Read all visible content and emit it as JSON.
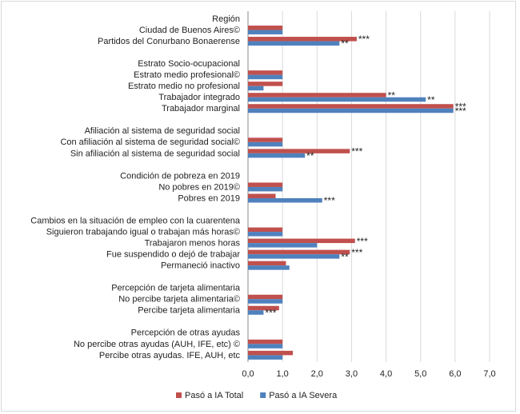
{
  "chart_data": {
    "type": "hbar",
    "categories": [
      "Región",
      "Ciudad de Buenos Aires©",
      "Partidos del Conurbano Bonaerense",
      null,
      "Estrato Socio-ocupacional",
      "Estrato medio profesional©",
      "Estrato medio no profesional",
      "Trabajador integrado",
      "Trabajador marginal",
      null,
      "Afiliación al sistema de seguridad social",
      "Con afiliación al sistema de seguridad social©",
      "Sin afiliación al sistema de seguridad social",
      null,
      "Condición de pobreza en 2019",
      "No pobres en 2019©",
      "Pobres en 2019",
      null,
      "Cambios en la situación de empleo con la cuarentena",
      "Siguieron trabajando igual o trabajan más horas©",
      "Trabajaron menos horas",
      "Fue suspendido o dejó de trabajar",
      "Permaneció inactivo",
      null,
      "Percepción de tarjeta alimentaria",
      "No percibe tarjeta alimentaria©",
      "Percibe tarjeta alimentaria",
      null,
      "Percepción de otras ayudas",
      "No percibe otras ayudas (AUH, IFE, etc) ©",
      "Percibe otras ayudas. IFE, AUH, etc"
    ],
    "series": [
      {
        "name": "Pasó a IA Total",
        "color": "#c0504d",
        "values": [
          null,
          1.0,
          3.15,
          null,
          null,
          1.0,
          1.0,
          4.0,
          5.95,
          null,
          null,
          1.0,
          2.95,
          null,
          null,
          1.0,
          0.8,
          null,
          null,
          1.0,
          3.1,
          2.95,
          1.1,
          null,
          null,
          1.0,
          0.9,
          null,
          null,
          1.0,
          1.3
        ],
        "significance": [
          null,
          null,
          "***",
          null,
          null,
          null,
          null,
          "**",
          "***",
          null,
          null,
          null,
          "***",
          null,
          null,
          null,
          null,
          null,
          null,
          null,
          "***",
          "***",
          null,
          null,
          null,
          null,
          null,
          null,
          null,
          null,
          null
        ]
      },
      {
        "name": "Pasó a IA Severa",
        "color": "#4f81bd",
        "values": [
          null,
          1.0,
          2.65,
          null,
          null,
          1.0,
          0.45,
          5.15,
          5.95,
          null,
          null,
          1.0,
          1.65,
          null,
          null,
          1.0,
          2.15,
          null,
          null,
          1.0,
          2.0,
          2.65,
          1.2,
          null,
          null,
          1.0,
          0.45,
          null,
          null,
          1.0,
          1.0
        ],
        "significance": [
          null,
          null,
          "**",
          null,
          null,
          null,
          null,
          "**",
          "***",
          null,
          null,
          null,
          "**",
          null,
          null,
          null,
          "***",
          null,
          null,
          null,
          null,
          "**",
          null,
          null,
          null,
          null,
          "***",
          null,
          null,
          null,
          null
        ]
      }
    ],
    "xlim": [
      0,
      7
    ],
    "xticks": [
      {
        "value": 0,
        "label": "0,0"
      },
      {
        "value": 1,
        "label": "1,0"
      },
      {
        "value": 2,
        "label": "2,0"
      },
      {
        "value": 3,
        "label": "3,0"
      },
      {
        "value": 4,
        "label": "4,0"
      },
      {
        "value": 5,
        "label": "5,0"
      },
      {
        "value": 6,
        "label": "6,0"
      },
      {
        "value": 7,
        "label": "7,0"
      }
    ],
    "grid": true,
    "legend": "bottom"
  }
}
